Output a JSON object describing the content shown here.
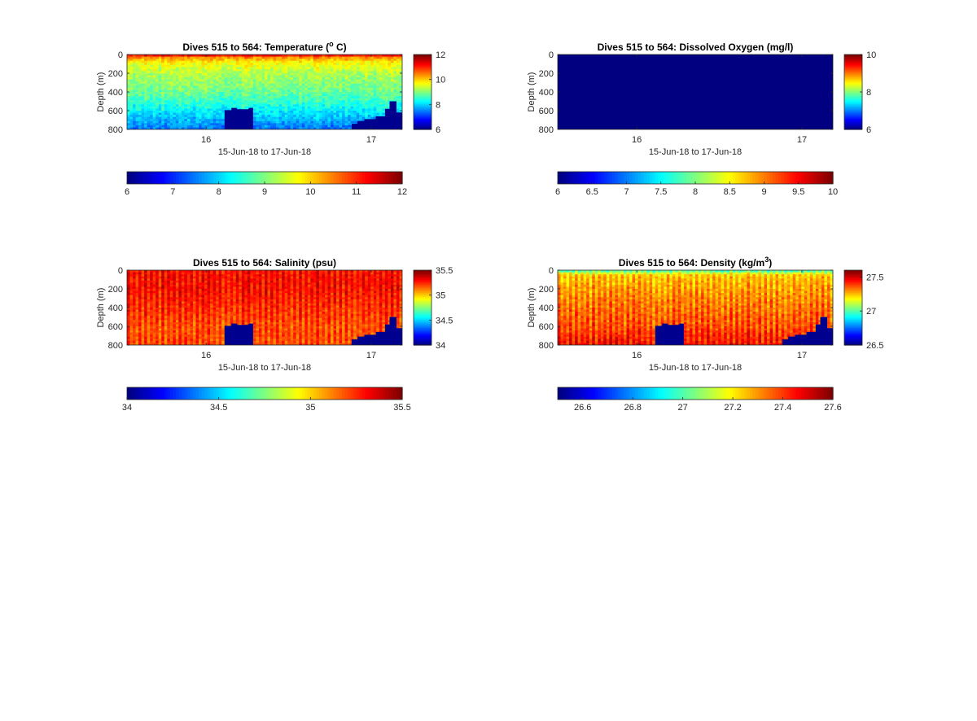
{
  "colormap": "jet",
  "colors": {
    "axis": "#262626",
    "fill_masked": "#00008f",
    "background": "#ffffff"
  },
  "chart_data": [
    {
      "id": "temperature",
      "type": "heatmap",
      "title": "Dives 515 to 564: Temperature (",
      "title_sup": "o",
      "title_end": " C)",
      "xlabel": "15-Jun-18 to 17-Jun-18",
      "ylabel": "Depth (m)",
      "x_range": [
        "2018-06-15T12:30",
        "2018-06-17T04:30"
      ],
      "x_ticks": [
        {
          "value": "2018-06-16T00:00",
          "label": "16"
        },
        {
          "value": "2018-06-17T00:00",
          "label": "17"
        }
      ],
      "y_range": [
        0,
        800
      ],
      "y_reversed": true,
      "y_ticks": [
        0,
        200,
        400,
        600,
        800
      ],
      "clim": [
        6,
        12
      ],
      "colorbar_side_ticks": [
        "6",
        "8",
        "10",
        "12"
      ],
      "colorbar_bottom_ticks": [
        "6",
        "7",
        "8",
        "9",
        "10",
        "11",
        "12"
      ],
      "profile_by_depth": [
        {
          "depth": 0,
          "value": 11.6
        },
        {
          "depth": 30,
          "value": 10.5
        },
        {
          "depth": 80,
          "value": 9.8
        },
        {
          "depth": 200,
          "value": 9.3
        },
        {
          "depth": 400,
          "value": 8.9
        },
        {
          "depth": 550,
          "value": 8.4
        },
        {
          "depth": 650,
          "value": 8.0
        },
        {
          "depth": 750,
          "value": 7.6
        },
        {
          "depth": 800,
          "value": 7.4
        }
      ],
      "noise": 0.3,
      "striped": false,
      "no_data_depth": [
        {
          "x": "2018-06-16T02:40",
          "depth": 800
        },
        {
          "x": "2018-06-16T02:41",
          "depth": 595
        },
        {
          "x": "2018-06-16T03:40",
          "depth": 570
        },
        {
          "x": "2018-06-16T04:30",
          "depth": 585
        },
        {
          "x": "2018-06-16T06:10",
          "depth": 570
        },
        {
          "x": "2018-06-16T06:50",
          "depth": 800
        },
        {
          "x": "2018-06-16T20:30",
          "depth": 800
        },
        {
          "x": "2018-06-16T21:10",
          "depth": 740
        },
        {
          "x": "2018-06-16T22:00",
          "depth": 710
        },
        {
          "x": "2018-06-16T23:00",
          "depth": 690
        },
        {
          "x": "2018-06-17T00:40",
          "depth": 660
        },
        {
          "x": "2018-06-17T02:00",
          "depth": 580
        },
        {
          "x": "2018-06-17T02:40",
          "depth": 500
        },
        {
          "x": "2018-06-17T03:40",
          "depth": 620
        },
        {
          "x": "2018-06-17T04:30",
          "depth": 620
        }
      ]
    },
    {
      "id": "oxygen",
      "type": "heatmap",
      "title": "Dives 515 to 564: Dissolved Oxygen (mg/l)",
      "title_sup": "",
      "title_end": "",
      "xlabel": "15-Jun-18 to 17-Jun-18",
      "ylabel": "Depth (m)",
      "x_range": [
        "2018-06-15T12:30",
        "2018-06-17T04:30"
      ],
      "x_ticks": [
        {
          "value": "2018-06-16T00:00",
          "label": "16"
        },
        {
          "value": "2018-06-17T00:00",
          "label": "17"
        }
      ],
      "y_range": [
        0,
        800
      ],
      "y_reversed": true,
      "y_ticks": [
        0,
        200,
        400,
        600,
        800
      ],
      "clim": [
        6,
        10
      ],
      "colorbar_side_ticks": [
        "6",
        "8",
        "10"
      ],
      "colorbar_bottom_ticks": [
        "6",
        "6.5",
        "7",
        "7.5",
        "8",
        "8.5",
        "9",
        "9.5",
        "10"
      ],
      "uniform_fill": true,
      "no_data_depth": []
    },
    {
      "id": "salinity",
      "type": "heatmap",
      "title": "Dives 515 to 564: Salinity (psu)",
      "title_sup": "",
      "title_end": "",
      "xlabel": "15-Jun-18 to 17-Jun-18",
      "ylabel": "Depth (m)",
      "x_range": [
        "2018-06-15T12:30",
        "2018-06-17T04:30"
      ],
      "x_ticks": [
        {
          "value": "2018-06-16T00:00",
          "label": "16"
        },
        {
          "value": "2018-06-17T00:00",
          "label": "17"
        }
      ],
      "y_range": [
        0,
        800
      ],
      "y_reversed": true,
      "y_ticks": [
        0,
        200,
        400,
        600,
        800
      ],
      "clim": [
        34,
        35.5
      ],
      "colorbar_side_ticks": [
        "34",
        "34.5",
        "35",
        "35.5"
      ],
      "colorbar_bottom_ticks": [
        "34",
        "34.5",
        "35",
        "35.5"
      ],
      "profile_by_depth": [
        {
          "depth": 0,
          "value": 35.3
        },
        {
          "depth": 200,
          "value": 35.3
        },
        {
          "depth": 400,
          "value": 35.25
        },
        {
          "depth": 600,
          "value": 35.2
        },
        {
          "depth": 800,
          "value": 35.2
        }
      ],
      "noise": 0.06,
      "striped": true,
      "no_data_depth": [
        {
          "x": "2018-06-16T02:40",
          "depth": 800
        },
        {
          "x": "2018-06-16T02:41",
          "depth": 595
        },
        {
          "x": "2018-06-16T03:40",
          "depth": 570
        },
        {
          "x": "2018-06-16T04:30",
          "depth": 585
        },
        {
          "x": "2018-06-16T06:10",
          "depth": 570
        },
        {
          "x": "2018-06-16T06:50",
          "depth": 800
        },
        {
          "x": "2018-06-16T20:30",
          "depth": 800
        },
        {
          "x": "2018-06-16T21:10",
          "depth": 740
        },
        {
          "x": "2018-06-16T22:00",
          "depth": 710
        },
        {
          "x": "2018-06-16T23:00",
          "depth": 690
        },
        {
          "x": "2018-06-17T00:40",
          "depth": 660
        },
        {
          "x": "2018-06-17T02:00",
          "depth": 580
        },
        {
          "x": "2018-06-17T02:40",
          "depth": 500
        },
        {
          "x": "2018-06-17T03:40",
          "depth": 620
        },
        {
          "x": "2018-06-17T04:30",
          "depth": 620
        }
      ]
    },
    {
      "id": "density",
      "type": "heatmap",
      "title": "Dives 515 to 564: Density (kg/m",
      "title_sup": "3",
      "title_end": ")",
      "xlabel": "15-Jun-18 to 17-Jun-18",
      "ylabel": "Depth (m)",
      "x_range": [
        "2018-06-15T12:30",
        "2018-06-17T04:30"
      ],
      "x_ticks": [
        {
          "value": "2018-06-16T00:00",
          "label": "16"
        },
        {
          "value": "2018-06-17T00:00",
          "label": "17"
        }
      ],
      "y_range": [
        0,
        800
      ],
      "y_reversed": true,
      "y_ticks": [
        0,
        200,
        400,
        600,
        800
      ],
      "clim": [
        26.5,
        27.6
      ],
      "colorbar_side_ticks": [
        "26.5",
        "27",
        "27.5"
      ],
      "colorbar_bottom_ticks": [
        "26.6",
        "26.8",
        "27",
        "27.2",
        "27.4",
        "27.6"
      ],
      "profile_by_depth": [
        {
          "depth": 0,
          "value": 26.8
        },
        {
          "depth": 15,
          "value": 27.1
        },
        {
          "depth": 60,
          "value": 27.25
        },
        {
          "depth": 300,
          "value": 27.32
        },
        {
          "depth": 600,
          "value": 27.38
        },
        {
          "depth": 800,
          "value": 27.45
        }
      ],
      "noise": 0.05,
      "striped": true,
      "no_data_depth": [
        {
          "x": "2018-06-16T02:40",
          "depth": 800
        },
        {
          "x": "2018-06-16T02:41",
          "depth": 595
        },
        {
          "x": "2018-06-16T03:40",
          "depth": 570
        },
        {
          "x": "2018-06-16T04:30",
          "depth": 585
        },
        {
          "x": "2018-06-16T06:10",
          "depth": 570
        },
        {
          "x": "2018-06-16T06:50",
          "depth": 800
        },
        {
          "x": "2018-06-16T20:30",
          "depth": 800
        },
        {
          "x": "2018-06-16T21:10",
          "depth": 740
        },
        {
          "x": "2018-06-16T22:00",
          "depth": 710
        },
        {
          "x": "2018-06-16T23:00",
          "depth": 690
        },
        {
          "x": "2018-06-17T00:40",
          "depth": 660
        },
        {
          "x": "2018-06-17T02:00",
          "depth": 580
        },
        {
          "x": "2018-06-17T02:40",
          "depth": 500
        },
        {
          "x": "2018-06-17T03:40",
          "depth": 620
        },
        {
          "x": "2018-06-17T04:30",
          "depth": 620
        }
      ]
    }
  ]
}
